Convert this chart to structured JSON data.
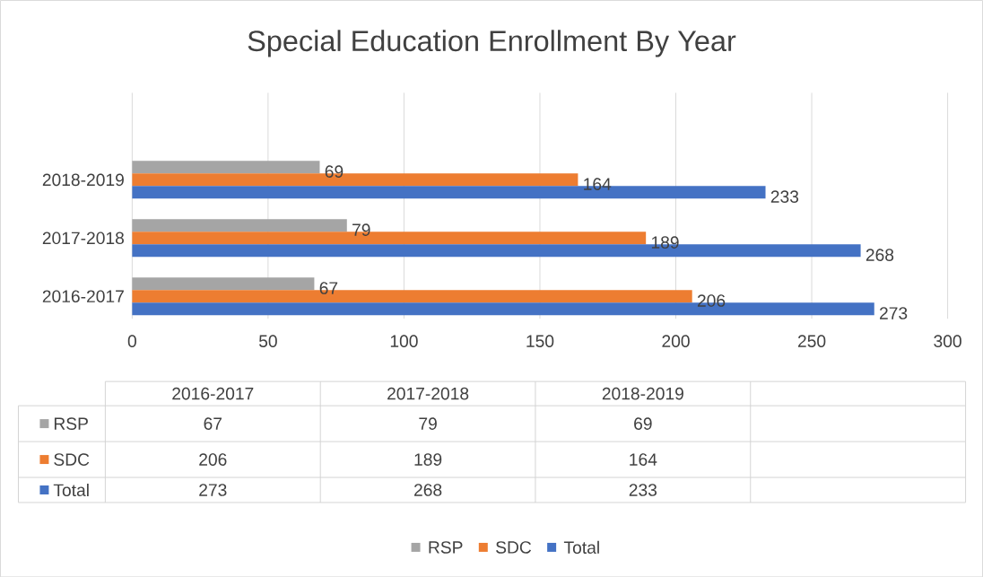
{
  "chart_data": {
    "type": "bar",
    "orientation": "horizontal",
    "title": "Special Education Enrollment By Year",
    "categories": [
      "2018-2019",
      "2017-2018",
      "2016-2017"
    ],
    "series": [
      {
        "name": "RSP",
        "color": "#a5a5a5",
        "values": [
          69,
          79,
          67
        ]
      },
      {
        "name": "SDC",
        "color": "#ed7d31",
        "values": [
          164,
          189,
          206
        ]
      },
      {
        "name": "Total",
        "color": "#4472c4",
        "values": [
          233,
          268,
          273
        ]
      }
    ],
    "annotations": [
      "67",
      "79",
      "69",
      "206",
      "189",
      "164",
      "273",
      "268",
      "233"
    ],
    "xlim": [
      0,
      300
    ],
    "xticks": [
      0,
      50,
      100,
      150,
      200,
      250,
      300
    ],
    "grid": "x",
    "data_labels": true,
    "legend": "bottom"
  }
}
